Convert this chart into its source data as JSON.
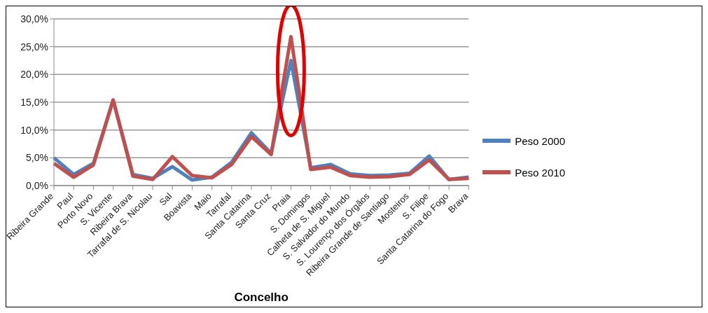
{
  "chart_data": {
    "type": "line",
    "xlabel": "Concelho",
    "categories": [
      "Ribeira Grande",
      "Paul",
      "Porto Novo",
      "S. Vicente",
      "Ribeira Brava",
      "Tarrafal de S. Nicolau",
      "Sal",
      "Boavista",
      "Maio",
      "Tarrafal",
      "Santa Catarina",
      "Santa Cruz",
      "Praia",
      "S. Domingos",
      "Calheta de S. Miguel",
      "S. Salvador do Mundo",
      "S. Lourenço dos Órgãos",
      "Ribeira Grande de Santiago",
      "Mosteiros",
      "S. Filipe",
      "Santa Catarina do Fogo",
      "Brava"
    ],
    "series": [
      {
        "name": "Peso 2000",
        "color": "#4f81bd",
        "values": [
          5.0,
          2.0,
          4.0,
          15.4,
          2.0,
          1.3,
          3.4,
          1.0,
          1.5,
          4.2,
          9.5,
          5.8,
          22.5,
          3.2,
          3.8,
          2.1,
          1.8,
          1.9,
          2.2,
          5.3,
          1.1,
          1.5
        ]
      },
      {
        "name": "Peso 2010",
        "color": "#c0504d",
        "values": [
          4.0,
          1.5,
          3.7,
          15.4,
          1.7,
          1.1,
          5.2,
          1.8,
          1.4,
          3.8,
          8.8,
          5.6,
          26.8,
          2.9,
          3.3,
          1.8,
          1.5,
          1.6,
          2.0,
          4.6,
          1.1,
          1.3
        ]
      }
    ],
    "ylim": [
      0,
      30
    ],
    "yticks": [
      {
        "value": 0,
        "label": "0,0%"
      },
      {
        "value": 5,
        "label": "5,0%"
      },
      {
        "value": 10,
        "label": "10,0%"
      },
      {
        "value": 15,
        "label": "15,0%"
      },
      {
        "value": 20,
        "label": "20,0%"
      },
      {
        "value": 25,
        "label": "25,0%"
      },
      {
        "value": 30,
        "label": "30,0%"
      }
    ],
    "grid": "y",
    "legend": "right",
    "marker": "none",
    "line_style": "solid"
  }
}
